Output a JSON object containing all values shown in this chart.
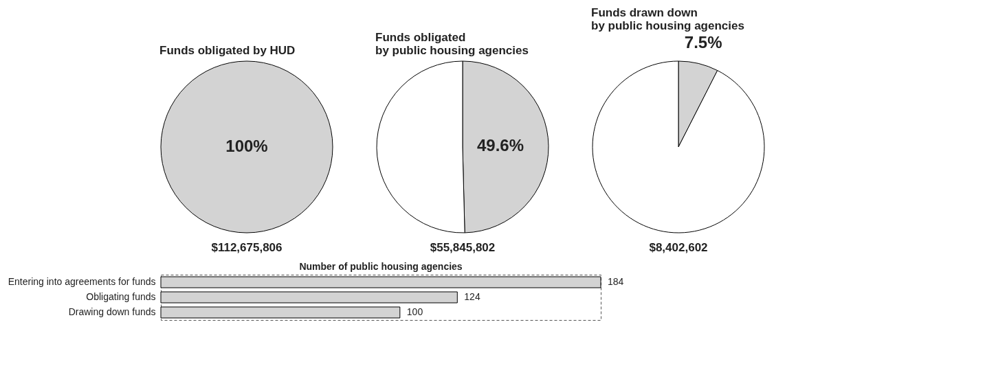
{
  "chart_data": [
    {
      "type": "pie",
      "title": "Funds obligated by HUD",
      "categories": [
        null
      ],
      "values": [
        100
      ],
      "colors": [
        "#d3d3d3"
      ],
      "value_labels": [
        "100%"
      ],
      "annotations": [
        "$112,675,806"
      ]
    },
    {
      "type": "pie",
      "title": "Funds obligated\nby public housing agencies",
      "categories": [
        null,
        null
      ],
      "values": [
        49.6,
        50.4
      ],
      "colors": [
        "#d3d3d3",
        "#ffffff"
      ],
      "value_labels": [
        "49.6%",
        null
      ],
      "annotations": [
        "$55,845,802"
      ]
    },
    {
      "type": "pie",
      "title": "Funds drawn down\nby public housing agencies",
      "categories": [
        null,
        null
      ],
      "values": [
        7.5,
        92.5
      ],
      "colors": [
        "#d3d3d3",
        "#ffffff"
      ],
      "value_labels": [
        "7.5%",
        null
      ],
      "annotations": [
        "$8,402,602"
      ]
    },
    {
      "type": "bar",
      "orientation": "horizontal",
      "title": "Number of public housing agencies",
      "categories": [
        "Entering into agreements for funds",
        "Obligating funds",
        "Drawing down funds"
      ],
      "values": [
        184,
        124,
        100
      ],
      "colors": [
        "#d3d3d3",
        "#d3d3d3",
        "#d3d3d3"
      ],
      "data_labels": true
    }
  ]
}
